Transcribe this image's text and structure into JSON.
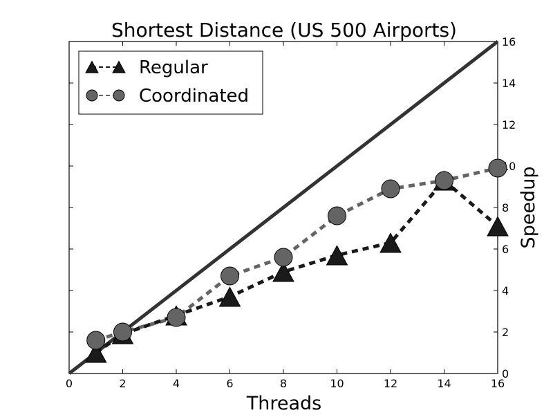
{
  "chart_data": {
    "type": "line",
    "title": "Shortest Distance (US 500 Airports)",
    "xlabel": "Threads",
    "ylabel": "Speedup",
    "xlim": [
      0,
      16
    ],
    "ylim": [
      0,
      16
    ],
    "xticks": [
      0,
      2,
      4,
      6,
      8,
      10,
      12,
      14,
      16
    ],
    "yticks": [
      0,
      2,
      4,
      6,
      8,
      10,
      12,
      14,
      16
    ],
    "y_axis_side": "right",
    "grid": false,
    "legend_position": "top-left",
    "ideal_line": {
      "x": [
        0,
        16
      ],
      "y": [
        0,
        16
      ],
      "color": "#333333"
    },
    "series": [
      {
        "name": "Regular",
        "marker": "triangle",
        "color": "#1a1a1a",
        "x": [
          1,
          2,
          4,
          6,
          8,
          10,
          12,
          14,
          16
        ],
        "y": [
          1.0,
          1.9,
          2.8,
          3.7,
          4.9,
          5.7,
          6.3,
          9.3,
          7.1
        ]
      },
      {
        "name": "Coordinated",
        "marker": "circle",
        "color": "#646464",
        "x": [
          1,
          2,
          4,
          6,
          8,
          10,
          12,
          14,
          16
        ],
        "y": [
          1.6,
          2.0,
          2.7,
          4.7,
          5.6,
          7.6,
          8.9,
          9.3,
          9.9
        ]
      }
    ]
  }
}
